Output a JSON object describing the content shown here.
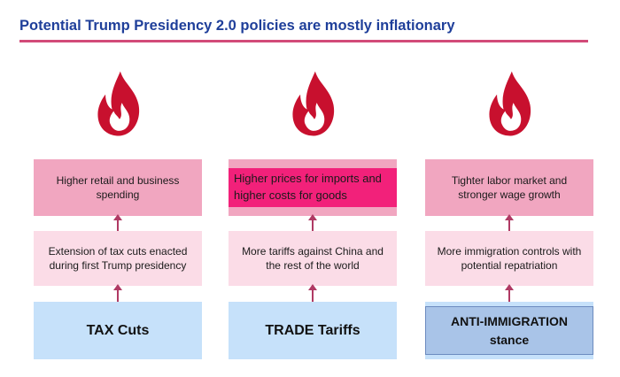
{
  "title": "Potential Trump Presidency 2.0 policies are mostly inflationary",
  "colors": {
    "title": "#1f3f9a",
    "rule": "#d24a78",
    "flame": "#c8102e",
    "top_box": "#f1a6c0",
    "mid_box": "#fbdce7",
    "bottom_box": "#c6e1fa",
    "highlight_pink": "#f2217a",
    "highlight_blue": "#a9c4e8"
  },
  "columns": [
    {
      "effect": "Higher retail and business spending",
      "mechanism": "Extension of tax cuts enacted during first Trump presidency",
      "policy": "TAX Cuts",
      "icon": "flame-icon"
    },
    {
      "effect": "Higher prices for imports and higher costs for goods",
      "mechanism": "More tariffs against China and the rest of the world",
      "policy": "TRADE Tariffs",
      "icon": "flame-icon"
    },
    {
      "effect": "Tighter labor market and stronger wage growth",
      "mechanism": "More immigration controls with potential repatriation",
      "policy": "ANTI-IMMIGRATION stance",
      "icon": "flame-icon"
    }
  ]
}
